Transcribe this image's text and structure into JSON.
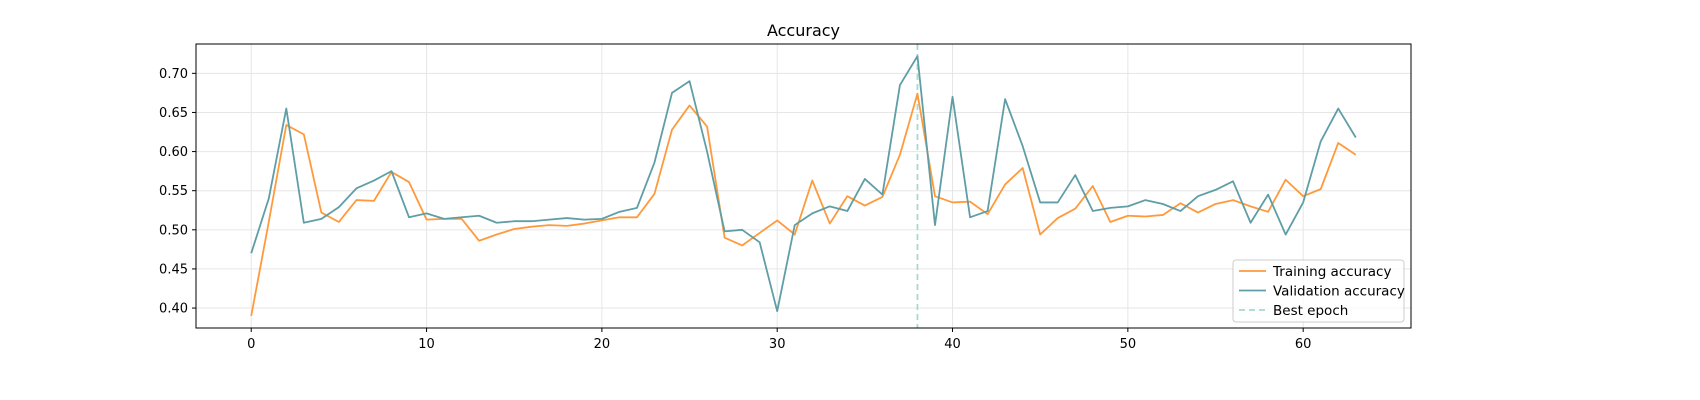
{
  "chart_data": {
    "type": "line",
    "title": "Accuracy",
    "xlabel": "",
    "ylabel": "",
    "xlim": [
      -3.15,
      66.15
    ],
    "ylim": [
      0.3745,
      0.7375
    ],
    "xticks": [
      0,
      10,
      20,
      30,
      40,
      50,
      60
    ],
    "yticks": [
      0.4,
      0.45,
      0.5,
      0.55,
      0.6,
      0.65,
      0.7
    ],
    "grid": true,
    "legend_position": "bottom-right",
    "series": [
      {
        "name": "Training accuracy",
        "color": "#ff9a3c",
        "x": [
          0,
          1,
          2,
          3,
          4,
          5,
          6,
          7,
          8,
          9,
          10,
          11,
          12,
          13,
          14,
          15,
          16,
          17,
          18,
          19,
          20,
          21,
          22,
          23,
          24,
          25,
          26,
          27,
          28,
          29,
          30,
          31,
          32,
          33,
          34,
          35,
          36,
          37,
          38,
          39,
          40,
          41,
          42,
          43,
          44,
          45,
          46,
          47,
          48,
          49,
          50,
          51,
          52,
          53,
          54,
          55,
          56,
          57,
          58,
          59,
          60,
          61,
          62,
          63
        ],
        "values": [
          0.39,
          0.51,
          0.634,
          0.622,
          0.522,
          0.51,
          0.538,
          0.537,
          0.574,
          0.561,
          0.513,
          0.514,
          0.514,
          0.486,
          0.494,
          0.501,
          0.504,
          0.506,
          0.505,
          0.508,
          0.512,
          0.516,
          0.516,
          0.546,
          0.628,
          0.659,
          0.632,
          0.49,
          0.48,
          0.496,
          0.512,
          0.494,
          0.563,
          0.508,
          0.543,
          0.531,
          0.542,
          0.596,
          0.674,
          0.543,
          0.535,
          0.536,
          0.52,
          0.558,
          0.579,
          0.494,
          0.515,
          0.527,
          0.556,
          0.51,
          0.518,
          0.517,
          0.519,
          0.534,
          0.522,
          0.533,
          0.538,
          0.53,
          0.523,
          0.564,
          0.543,
          0.552,
          0.611,
          0.596
        ]
      },
      {
        "name": "Validation accuracy",
        "color": "#5f9ea6",
        "x": [
          0,
          1,
          2,
          3,
          4,
          5,
          6,
          7,
          8,
          9,
          10,
          11,
          12,
          13,
          14,
          15,
          16,
          17,
          18,
          19,
          20,
          21,
          22,
          23,
          24,
          25,
          26,
          27,
          28,
          29,
          30,
          31,
          32,
          33,
          34,
          35,
          36,
          37,
          38,
          39,
          40,
          41,
          42,
          43,
          44,
          45,
          46,
          47,
          48,
          49,
          50,
          51,
          52,
          53,
          54,
          55,
          56,
          57,
          58,
          59,
          60,
          61,
          62,
          63
        ],
        "values": [
          0.47,
          0.54,
          0.655,
          0.509,
          0.514,
          0.529,
          0.553,
          0.563,
          0.575,
          0.516,
          0.521,
          0.514,
          0.516,
          0.518,
          0.509,
          0.511,
          0.511,
          0.513,
          0.515,
          0.513,
          0.514,
          0.523,
          0.528,
          0.586,
          0.675,
          0.69,
          0.6,
          0.498,
          0.5,
          0.484,
          0.396,
          0.506,
          0.521,
          0.53,
          0.524,
          0.565,
          0.545,
          0.685,
          0.722,
          0.506,
          0.67,
          0.516,
          0.524,
          0.667,
          0.607,
          0.535,
          0.535,
          0.57,
          0.524,
          0.528,
          0.53,
          0.538,
          0.533,
          0.524,
          0.543,
          0.551,
          0.562,
          0.509,
          0.545,
          0.494,
          0.535,
          0.613,
          0.655,
          0.618
        ]
      }
    ],
    "best_epoch": {
      "name": "Best epoch",
      "x": 38,
      "color": "#a8d8d0"
    }
  }
}
